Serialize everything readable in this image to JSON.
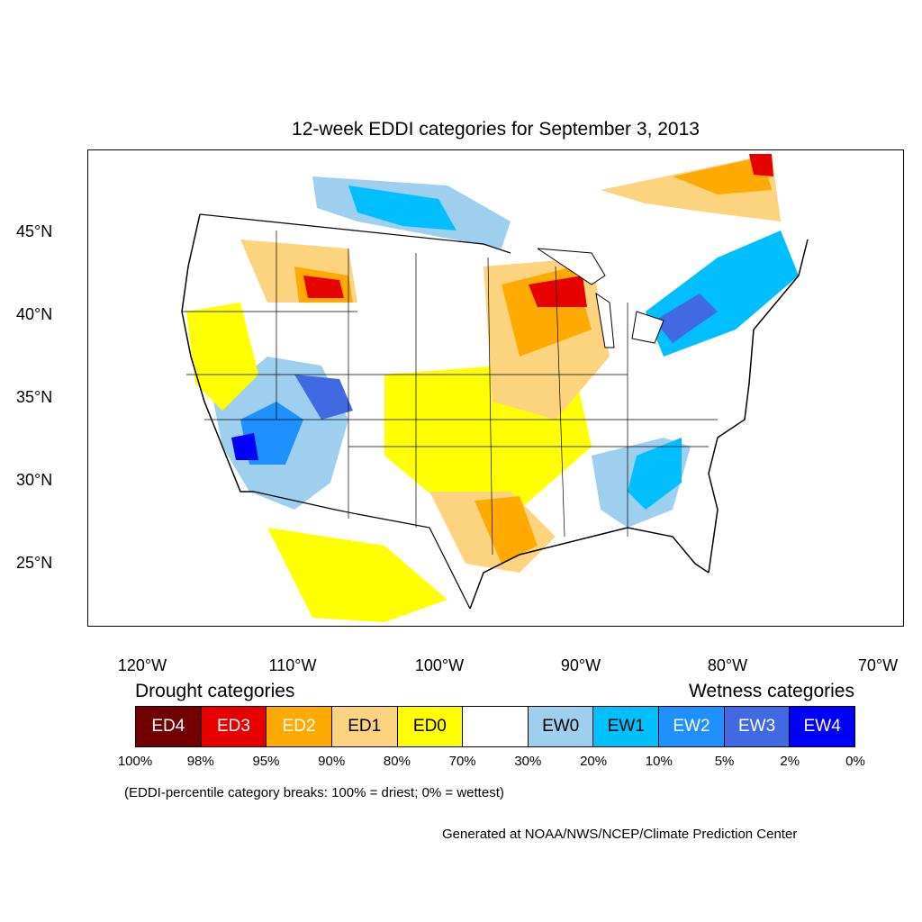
{
  "title": "12-week EDDI categories for September 3, 2013",
  "lat_labels": [
    "45°N",
    "40°N",
    "35°N",
    "30°N",
    "25°N"
  ],
  "lon_labels": [
    "120°W",
    "110°W",
    "100°W",
    "90°W",
    "80°W",
    "70°W"
  ],
  "legend": {
    "drought_heading": "Drought categories",
    "wetness_heading": "Wetness categories",
    "categories": [
      {
        "label": "ED4",
        "color": "#730000",
        "text_color": "#ffffff"
      },
      {
        "label": "ED3",
        "color": "#e60000",
        "text_color": "#ffffff"
      },
      {
        "label": "ED2",
        "color": "#ffaa00",
        "text_color": "#ffffff"
      },
      {
        "label": "ED1",
        "color": "#fcd37f",
        "text_color": "#000000"
      },
      {
        "label": "ED0",
        "color": "#ffff00",
        "text_color": "#000000"
      },
      {
        "label": "",
        "color": "#ffffff",
        "text_color": "#000000"
      },
      {
        "label": "EW0",
        "color": "#9fcfef",
        "text_color": "#000000"
      },
      {
        "label": "EW1",
        "color": "#00bfff",
        "text_color": "#000000"
      },
      {
        "label": "EW2",
        "color": "#1e90ff",
        "text_color": "#ffffff"
      },
      {
        "label": "EW3",
        "color": "#4169e1",
        "text_color": "#ffffff"
      },
      {
        "label": "EW4",
        "color": "#0000ff",
        "text_color": "#ffffff"
      }
    ],
    "breaks": [
      "100%",
      "98%",
      "95%",
      "90%",
      "80%",
      "70%",
      "30%",
      "20%",
      "10%",
      "5%",
      "2%",
      "0%"
    ]
  },
  "note": "(EDDI-percentile category breaks: 100% = driest; 0% = wettest)",
  "credit": "Generated at NOAA/NWS/NCEP/Climate Prediction Center"
}
